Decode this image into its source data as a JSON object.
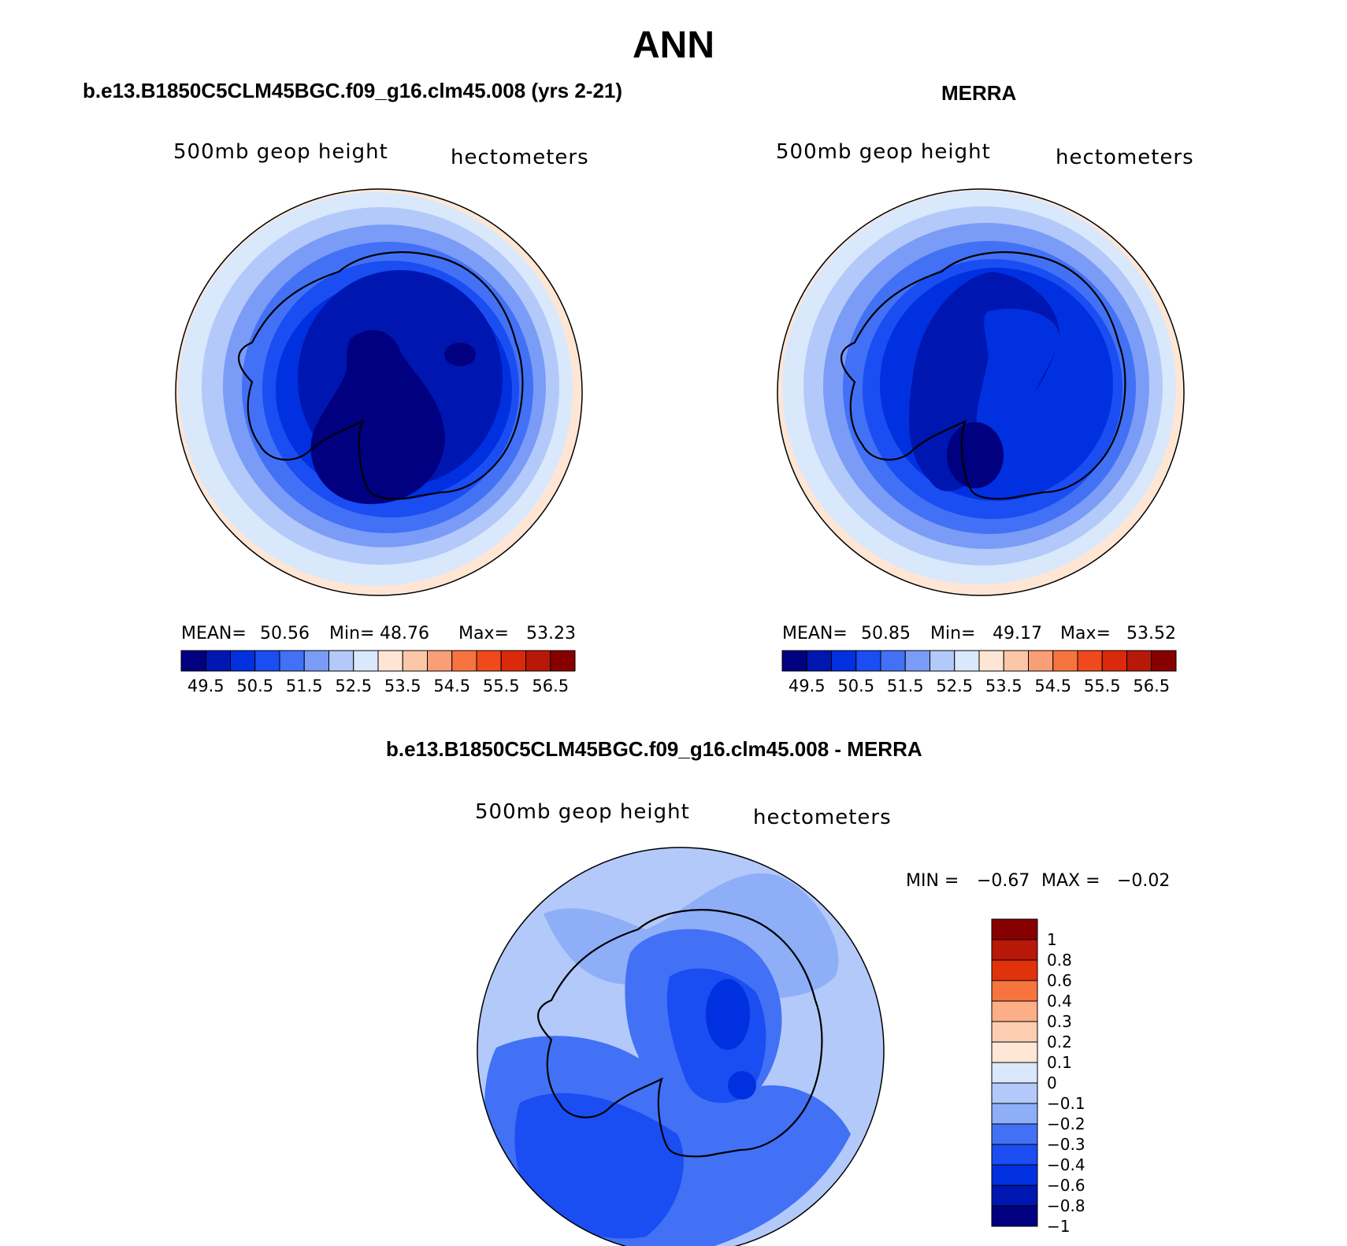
{
  "figure": {
    "title": "ANN"
  },
  "panels": [
    {
      "title": "b.e13.B1850C5CLM45BGC.f09_g16.clm45.008 (yrs 2-21)",
      "left_label": "500mb  geop  height",
      "right_label": "hectometers",
      "stats": {
        "mean_label": "MEAN=",
        "mean": "50.56",
        "min_label": "Min=",
        "min": "48.76",
        "max_label": "Max=",
        "max": "53.23"
      }
    },
    {
      "title": "MERRA",
      "left_label": "500mb  geop  height",
      "right_label": "hectometers",
      "stats": {
        "mean_label": "MEAN=",
        "mean": "50.85",
        "min_label": "Min=",
        "min": "49.17",
        "max_label": "Max=",
        "max": "53.52"
      }
    },
    {
      "title": "b.e13.B1850C5CLM45BGC.f09_g16.clm45.008 - MERRA",
      "left_label": "500mb  geop  height",
      "right_label": "hectometers",
      "stats": {
        "min_label": "MIN =",
        "min": "−0.67",
        "max_label": "MAX =",
        "max": "−0.02"
      }
    }
  ],
  "colorbar_abs": {
    "colors": [
      "#000080",
      "#0016b0",
      "#0030e0",
      "#1a4df2",
      "#4271f5",
      "#7a9cf7",
      "#b3c9fa",
      "#dae8fc",
      "#ffe6d4",
      "#fcc7a8",
      "#f99e76",
      "#f7743f",
      "#f0491c",
      "#db2a0b",
      "#b81808",
      "#870000"
    ],
    "labels": [
      "49.5",
      "50.5",
      "51.5",
      "52.5",
      "53.5",
      "54.5",
      "55.5",
      "56.5"
    ]
  },
  "colorbar_diff": {
    "colors": [
      "#870000",
      "#b81808",
      "#e0330c",
      "#f7743f",
      "#fcae87",
      "#fdcdb2",
      "#ffe7d8",
      "#dae8fc",
      "#b3c9fa",
      "#8eaef8",
      "#4271f5",
      "#1a4df2",
      "#0030e0",
      "#0016b0",
      "#000080"
    ],
    "labels": [
      "1",
      "0.8",
      "0.6",
      "0.4",
      "0.3",
      "0.2",
      "0.1",
      "0",
      "−0.1",
      "−0.2",
      "−0.3",
      "−0.4",
      "−0.6",
      "−0.8",
      "−1"
    ]
  }
}
